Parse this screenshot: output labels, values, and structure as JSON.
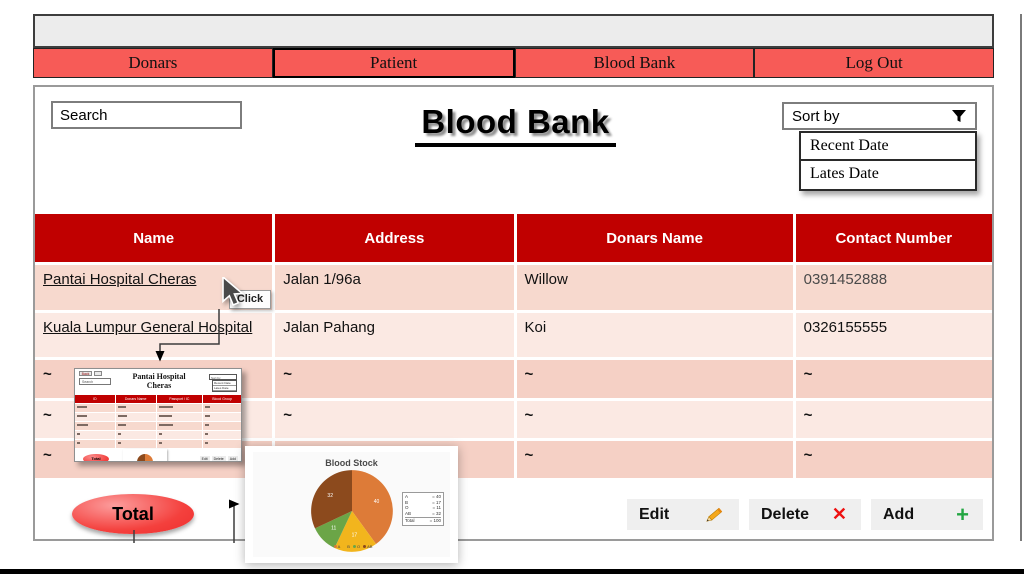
{
  "window": {
    "tabs": [
      "Donars",
      "Patient",
      "Blood Bank",
      "Log Out"
    ]
  },
  "search": {
    "value": "Search"
  },
  "title": "Blood Bank",
  "sort": {
    "label": "Sort by",
    "options": [
      "Recent Date",
      "Lates Date"
    ]
  },
  "table": {
    "headers": [
      "Name",
      "Address",
      "Donars Name",
      "Contact Number"
    ],
    "rows": [
      {
        "name": "Pantai Hospital Cheras",
        "address": "Jalan 1/96a",
        "donar": "Willow",
        "contact": "0391452888"
      },
      {
        "name": "Kuala Lumpur General Hospital",
        "address": "Jalan Pahang",
        "donar": "Koi",
        "contact": "0326155555"
      },
      {
        "name": "~",
        "address": "~",
        "donar": "~",
        "contact": "~"
      },
      {
        "name": "~",
        "address": "~",
        "donar": "~",
        "contact": "~"
      },
      {
        "name": "~",
        "address": "~",
        "donar": "~",
        "contact": "~"
      }
    ]
  },
  "annotations": {
    "click_tooltip": "Click"
  },
  "total_label": "Total",
  "actions": {
    "edit": "Edit",
    "delete": "Delete",
    "add": "Add"
  },
  "preview": {
    "back_label": "Back",
    "title_line1": "Pantai Hospital",
    "title_line2": "Cheras",
    "search": "Search",
    "sort_label": "Sort by",
    "options": [
      "Recent Date",
      "Lates Date"
    ],
    "headers": [
      "ID",
      "Donars Name",
      "Passport / IC",
      "Blood Group"
    ],
    "total_label": "Total",
    "actions": {
      "edit": "Edit",
      "delete": "Delete",
      "add": "Add"
    }
  },
  "chart_data": {
    "type": "pie",
    "title": "Blood Stock",
    "labels": [
      "A",
      "B",
      "O",
      "AB"
    ],
    "values": [
      40,
      17,
      11,
      32
    ],
    "colors": [
      "#dd7b38",
      "#f2b51d",
      "#6ba547",
      "#8c4a1d"
    ],
    "legend_position": "right",
    "legend_total_label": "Total"
  }
}
